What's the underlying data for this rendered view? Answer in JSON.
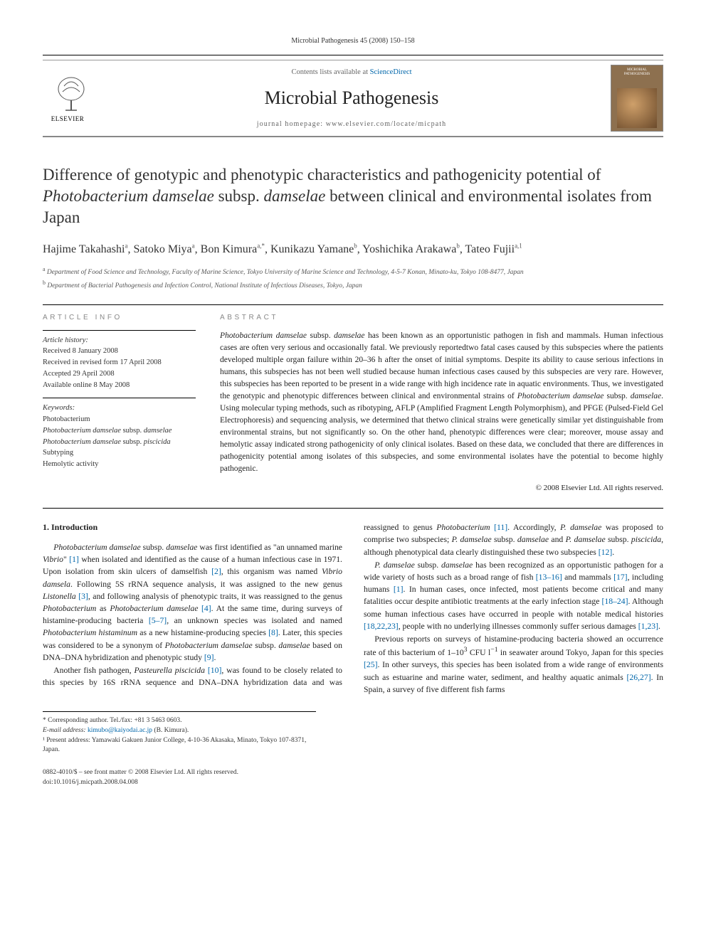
{
  "running_head": "Microbial Pathogenesis 45 (2008) 150–158",
  "header": {
    "contents_pre": "Contents lists available at ",
    "contents_link": "ScienceDirect",
    "journal": "Microbial Pathogenesis",
    "homepage": "journal homepage: www.elsevier.com/locate/micpath",
    "publisher": "ELSEVIER",
    "cover_label": "MICROBIAL PATHOGENESIS"
  },
  "article": {
    "title_html": "Difference of genotypic and phenotypic characteristics and pathogenicity potential of <em>Photobacterium damselae</em> subsp. <em>damselae</em> between clinical and environmental isolates from Japan",
    "authors_html": "Hajime Takahashi<sup>a</sup>, Satoko Miya<sup>a</sup>, Bon Kimura<sup>a,*</sup>, Kunikazu Yamane<sup>b</sup>, Yoshichika Arakawa<sup>b</sup>, Tateo Fujii<sup>a,1</sup>",
    "affiliations": [
      {
        "sup": "a",
        "text": "Department of Food Science and Technology, Faculty of Marine Science, Tokyo University of Marine Science and Technology, 4-5-7 Konan, Minato-ku, Tokyo 108-8477, Japan"
      },
      {
        "sup": "b",
        "text": "Department of Bacterial Pathogenesis and Infection Control, National Institute of Infectious Diseases, Tokyo, Japan"
      }
    ]
  },
  "article_info": {
    "head": "ARTICLE INFO",
    "history_label": "Article history:",
    "history": [
      "Received 8 January 2008",
      "Received in revised form 17 April 2008",
      "Accepted 29 April 2008",
      "Available online 8 May 2008"
    ],
    "keywords_label": "Keywords:",
    "keywords_html": "Photobacterium<br><em>Photobacterium damselae</em> subsp. <em>damselae</em><br><em>Photobacterium damselae</em> subsp. <em>piscicida</em><br>Subtyping<br>Hemolytic activity"
  },
  "abstract": {
    "head": "ABSTRACT",
    "text_html": "<em>Photobacterium damselae</em> subsp. <em>damselae</em> has been known as an opportunistic pathogen in fish and mammals. Human infectious cases are often very serious and occasionally fatal. We previously reportedtwo fatal cases caused by this subspecies where the patients developed multiple organ failure within 20–36 h after the onset of initial symptoms. Despite its ability to cause serious infections in humans, this subspecies has not been well studied because human infectious cases caused by this subspecies are very rare. However, this subspecies has been reported to be present in a wide range with high incidence rate in aquatic environments. Thus, we investigated the genotypic and phenotypic differences between clinical and environmental strains of <em>Photobacterium damselae</em> subsp. <em>damselae</em>. Using molecular typing methods, such as ribotyping, AFLP (Amplified Fragment Length Polymorphism), and PFGE (Pulsed-Field Gel Electrophoresis) and sequencing analysis, we determined that thetwo clinical strains were genetically similar yet distinguishable from environmental strains, but not significantly so. On the other hand, phenotypic differences were clear; moreover, mouse assay and hemolytic assay indicated strong pathogenicity of only clinical isolates. Based on these data, we concluded that there are differences in pathogenicity potential among isolates of this subspecies, and some environmental isolates have the potential to become highly pathogenic.",
    "copyright": "© 2008 Elsevier Ltd. All rights reserved."
  },
  "body": {
    "intro_head": "1. Introduction",
    "p1_html": "<em>Photobacterium damselae</em> subsp. <em>damselae</em> was first identified as \"an unnamed marine <em>Vibrio</em>\" <span class=\"ref\">[1]</span> when isolated and identified as the cause of a human infectious case in 1971. Upon isolation from skin ulcers of damselfish <span class=\"ref\">[2]</span>, this organism was named <em>Vibrio damsela</em>. Following 5S rRNA sequence analysis, it was assigned to the new genus <em>Listonella</em> <span class=\"ref\">[3]</span>, and following analysis of phenotypic traits, it was reassigned to the genus <em>Photobacterium</em> as <em>Photobacterium damselae</em> <span class=\"ref\">[4]</span>. At the same time, during surveys of histamine-producing bacteria <span class=\"ref\">[5–7]</span>, an unknown species was isolated and named <em>Photobacterium histaminum</em> as a new histamine-producing species <span class=\"ref\">[8]</span>. Later, this species was considered to be a synonym of <em>Photobacterium damselae</em> subsp. <em>damselae</em> based on DNA–DNA hybridization and phenotypic study <span class=\"ref\">[9]</span>.",
    "p2_html": "Another fish pathogen, <em>Pasteurella piscicida</em> <span class=\"ref\">[10]</span>, was found to be closely related to this species by 16S rRNA sequence and DNA–DNA hybridization data and was reassigned to genus <em>Photobacterium</em> <span class=\"ref\">[11]</span>. Accordingly, <em>P. damselae</em> was proposed to comprise two subspecies; <em>P. damselae</em> subsp. <em>damselae</em> and <em>P. damselae</em> subsp. <em>piscicida</em>, although phenotypical data clearly distinguished these two subspecies <span class=\"ref\">[12]</span>.",
    "p3_html": "<em>P. damselae</em> subsp. <em>damselae</em> has been recognized as an opportunistic pathogen for a wide variety of hosts such as a broad range of fish <span class=\"ref\">[13–16]</span> and mammals <span class=\"ref\">[17]</span>, including humans <span class=\"ref\">[1]</span>. In human cases, once infected, most patients become critical and many fatalities occur despite antibiotic treatments at the early infection stage <span class=\"ref\">[18–24]</span>. Although some human infectious cases have occurred in people with notable medical histories <span class=\"ref\">[18,22,23]</span>, people with no underlying illnesses commonly suffer serious damages <span class=\"ref\">[1,23]</span>.",
    "p4_html": "Previous reports on surveys of histamine-producing bacteria showed an occurrence rate of this bacterium of 1–10<sup>3</sup> CFU l<sup>−1</sup> in seawater around Tokyo, Japan for this species <span class=\"ref\">[25]</span>. In other surveys, this species has been isolated from a wide range of environments such as estuarine and marine water, sediment, and healthy aquatic animals <span class=\"ref\">[26,27]</span>. In Spain, a survey of five different fish farms"
  },
  "footnotes": {
    "corr": "* Corresponding author. Tel./fax: +81 3 5463 0603.",
    "email_label": "E-mail address: ",
    "email": "kimubo@kaiyodai.ac.jp",
    "email_name": " (B. Kimura).",
    "present": "¹ Present address: Yamawaki Gakuen Junior College, 4-10-36 Akasaka, Minato, Tokyo 107-8371, Japan."
  },
  "footer": {
    "issn": "0882-4010/$ – see front matter © 2008 Elsevier Ltd. All rights reserved.",
    "doi": "doi:10.1016/j.micpath.2008.04.008"
  },
  "colors": {
    "link": "#0066aa",
    "text": "#222222",
    "muted": "#888888",
    "cover_bg": "#8d704f"
  }
}
